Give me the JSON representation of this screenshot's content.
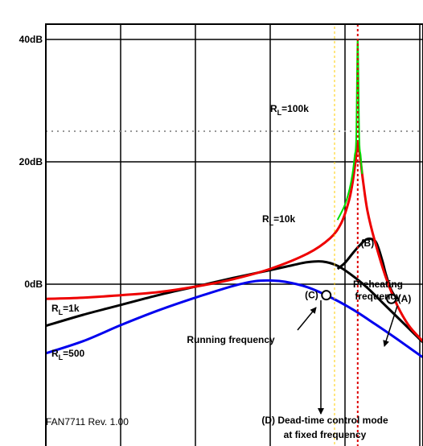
{
  "chart_data": {
    "type": "line",
    "title": "",
    "xlabel": "",
    "ylabel": "",
    "ylim": [
      -15,
      42
    ],
    "yticks": [
      {
        "value": 40,
        "label": "40dB"
      },
      {
        "value": 20,
        "label": "20dB"
      },
      {
        "value": 0,
        "label": "0dB"
      }
    ],
    "x_ticks": [
      0,
      1,
      2,
      3,
      4,
      5
    ],
    "xlim": [
      0,
      5.2
    ],
    "grid": true,
    "reference_line_db": 25,
    "resonance_x": 4.17,
    "series": [
      {
        "name": "RL=100k",
        "color": "#00dd00",
        "x": [
          3.9,
          4.0,
          4.06,
          4.1,
          4.13,
          4.15,
          4.17,
          4.19,
          4.21,
          4.23
        ],
        "y": [
          10.5,
          13,
          15.5,
          18,
          21,
          24,
          40,
          24,
          21,
          18
        ]
      },
      {
        "name": "RL=10k",
        "color": "#ee0000",
        "x": [
          0,
          0.5,
          1.0,
          1.5,
          2.0,
          2.5,
          3.0,
          3.5,
          3.8,
          3.95,
          4.05,
          4.1,
          4.14,
          4.17,
          4.2,
          4.24,
          4.3,
          4.4,
          4.55,
          4.7,
          4.85,
          5.0,
          5.2
        ],
        "y": [
          -2.4,
          -2.2,
          -1.8,
          -1.3,
          -0.4,
          0.8,
          2.5,
          5.0,
          7.5,
          10.0,
          13.5,
          16.5,
          20.0,
          23.0,
          21.0,
          17.0,
          12.0,
          7.0,
          1.0,
          -3.5,
          -6.7,
          -8.8,
          -11.2
        ]
      },
      {
        "name": "RL=1k",
        "color": "#000000",
        "x": [
          0,
          0.5,
          1.0,
          1.5,
          2.0,
          2.5,
          3.0,
          3.3,
          3.5,
          3.7,
          3.9,
          4.1,
          4.3,
          4.5,
          4.7,
          4.9,
          5.1,
          5.2
        ],
        "y": [
          -6.8,
          -5.0,
          -3.4,
          -1.8,
          -0.4,
          1.0,
          2.3,
          3.1,
          3.6,
          3.7,
          3.0,
          1.4,
          -0.6,
          -3.0,
          -5.4,
          -7.8,
          -10.2,
          -11.5
        ]
      },
      {
        "name": "RL=500",
        "color": "#0000ee",
        "x": [
          0,
          0.5,
          1.0,
          1.5,
          2.0,
          2.5,
          2.8,
          3.0,
          3.2,
          3.5,
          3.8,
          4.1,
          4.4,
          4.7,
          5.0,
          5.2
        ],
        "y": [
          -11.3,
          -9.3,
          -6.7,
          -4.3,
          -2.2,
          -0.3,
          0.5,
          0.6,
          0.4,
          -0.5,
          -2.1,
          -4.1,
          -6.5,
          -9.0,
          -11.6,
          -13.2
        ]
      },
      {
        "name": "Preheating",
        "color": "#000000",
        "x": [
          3.9,
          4.0,
          4.1,
          4.2,
          4.3,
          4.4,
          4.45,
          4.5,
          4.55,
          4.62,
          4.7
        ],
        "y": [
          2.5,
          3.5,
          5.0,
          6.4,
          7.4,
          7.1,
          5.8,
          3.8,
          1.5,
          -1.0,
          -2.5
        ]
      }
    ],
    "series_labels": [
      {
        "name": "RL=100k",
        "main": "R",
        "sub": "L",
        "rest": "=100k"
      },
      {
        "name": "RL=10k",
        "main": "R",
        "sub": "L",
        "rest": "=10k"
      },
      {
        "name": "RL=1k",
        "main": "R",
        "sub": "L",
        "rest": "=1k"
      },
      {
        "name": "RL=500",
        "main": "R",
        "sub": "L",
        "rest": "=500"
      }
    ],
    "points": [
      {
        "label": "(A)",
        "x": 4.62,
        "y": -2.4
      },
      {
        "label": "(B)",
        "x": 4.3,
        "y": 2.5
      },
      {
        "label": "(C)",
        "x": 3.75,
        "y": -1.8
      }
    ],
    "annotations": [
      {
        "text": "Preheating",
        "text2": "frequency"
      },
      {
        "text": "Running frequency"
      },
      {
        "text": "(D) Dead-time control mode",
        "text2": "at fixed frequency"
      }
    ],
    "footer": "FAN7711 Rev. 1.00"
  }
}
